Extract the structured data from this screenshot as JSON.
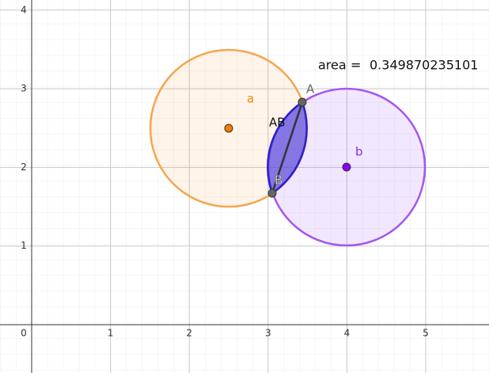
{
  "axes": {
    "origin": 0,
    "x_ticks": [
      1,
      2,
      3,
      4,
      5
    ],
    "y_ticks": [
      1,
      2,
      3,
      4
    ]
  },
  "objects": {
    "circle_a_label": "a",
    "circle_b_label": "b",
    "point_A_label": "A",
    "point_B_label": "B",
    "segment_label": "AB"
  },
  "area": {
    "label": "area",
    "equals": "=",
    "value": 0.349870235101
  }
}
